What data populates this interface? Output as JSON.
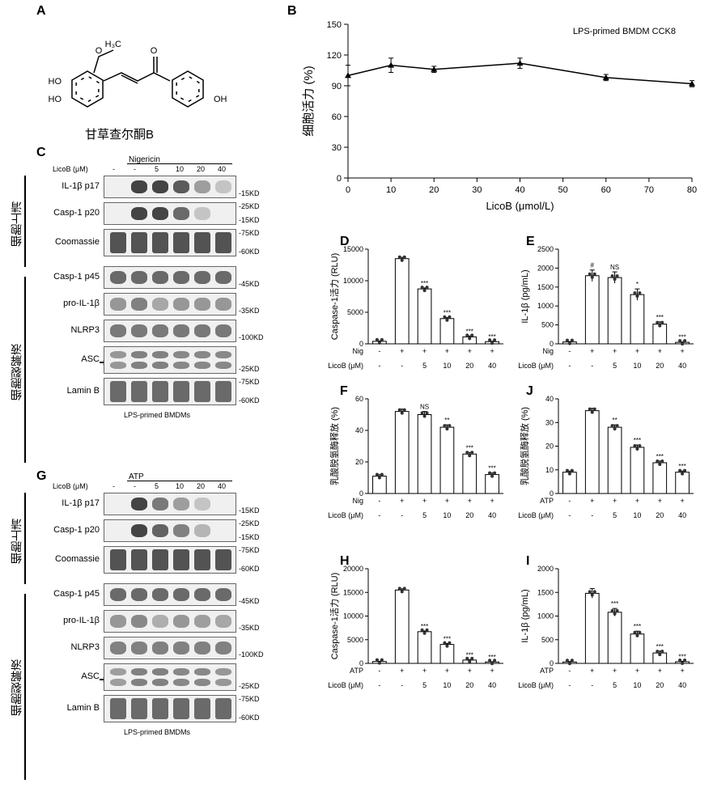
{
  "labels": {
    "A": "A",
    "B": "B",
    "C": "C",
    "D": "D",
    "E": "E",
    "F": "F",
    "G": "G",
    "H": "H",
    "I": "I",
    "J": "J"
  },
  "panelA": {
    "compound_zh": "甘草查尔酮B",
    "atoms": {
      "och3": "H₃C",
      "o": "O",
      "ho_l1": "HO",
      "ho_l2": "HO",
      "oh_r": "OH"
    }
  },
  "panelB": {
    "title": "LPS-primed BMDM CCK8",
    "xlabel": "LicoB (μmol/L)",
    "ylabel": "细胞活力 (%)",
    "x": [
      0,
      10,
      20,
      40,
      60,
      80
    ],
    "y": [
      100,
      110,
      106,
      112,
      98,
      92
    ],
    "err": [
      10,
      7,
      3,
      5,
      3,
      3
    ],
    "xlim": [
      0,
      80
    ],
    "ylim": [
      0,
      150
    ],
    "xticks": [
      0,
      10,
      20,
      30,
      40,
      50,
      60,
      70,
      80
    ],
    "yticks": [
      0,
      30,
      60,
      90,
      120,
      150
    ],
    "line_color": "#000000",
    "marker_color": "#000000",
    "axis_color": "#000000",
    "background": "#ffffff",
    "fontsize": 11
  },
  "wb_common": {
    "conc_header": "LicoB (μM)",
    "conc_values": [
      "-",
      "-",
      "5",
      "10",
      "20",
      "40"
    ],
    "caption": "LPS-primed BMDMs",
    "side_supernatant": "细胞上清",
    "side_lysate": "细胞裂解液"
  },
  "panelC": {
    "stim": "Nigericin",
    "rows": [
      {
        "label": "IL-1β p17",
        "mw": "-15KD",
        "intens": [
          0,
          0.95,
          0.95,
          0.8,
          0.35,
          0.1
        ]
      },
      {
        "label": "Casp-1 p20",
        "mw_top": "-25KD",
        "mw": "-15KD",
        "intens": [
          0,
          0.95,
          0.95,
          0.7,
          0.1,
          0
        ]
      },
      {
        "label": "Coomassie",
        "mw_top": "-75KD",
        "mw": "-60KD",
        "intens": [
          0.85,
          0.85,
          0.85,
          0.85,
          0.85,
          0.85
        ],
        "thick": true
      },
      {
        "label": "Casp-1 p45",
        "mw": "-45KD",
        "intens": [
          0.7,
          0.7,
          0.7,
          0.7,
          0.7,
          0.7
        ]
      },
      {
        "label": "pro-IL-1β",
        "mw": "-35KD",
        "intens": [
          0.4,
          0.55,
          0.3,
          0.4,
          0.4,
          0.4
        ]
      },
      {
        "label": "NLRP3",
        "mw": "-100KD",
        "intens": [
          0.6,
          0.6,
          0.6,
          0.6,
          0.6,
          0.6
        ]
      },
      {
        "label": "ASC",
        "mw": "-25KD",
        "intens": [
          0.4,
          0.55,
          0.55,
          0.5,
          0.5,
          0.5
        ],
        "arrow": true,
        "double": true
      },
      {
        "label": "Lamin B",
        "mw_top": "-75KD",
        "mw": "-60KD",
        "intens": [
          0.7,
          0.7,
          0.7,
          0.7,
          0.7,
          0.7
        ],
        "thick": true
      }
    ]
  },
  "panelG": {
    "stim": "ATP",
    "rows": [
      {
        "label": "IL-1β p17",
        "mw": "-15KD",
        "intens": [
          0,
          0.95,
          0.6,
          0.35,
          0.1,
          0
        ]
      },
      {
        "label": "Casp-1 p20",
        "mw_top": "-25KD",
        "mw": "-15KD",
        "intens": [
          0,
          0.95,
          0.75,
          0.55,
          0.2,
          0
        ]
      },
      {
        "label": "Coomassie",
        "mw_top": "-75KD",
        "mw": "-60KD",
        "intens": [
          0.85,
          0.85,
          0.85,
          0.85,
          0.85,
          0.85
        ],
        "thick": true
      },
      {
        "label": "Casp-1 p45",
        "mw": "-45KD",
        "intens": [
          0.7,
          0.7,
          0.7,
          0.7,
          0.7,
          0.7
        ]
      },
      {
        "label": "pro-IL-1β",
        "mw": "-35KD",
        "intens": [
          0.4,
          0.5,
          0.25,
          0.4,
          0.35,
          0.3
        ]
      },
      {
        "label": "NLRP3",
        "mw": "-100KD",
        "intens": [
          0.55,
          0.55,
          0.55,
          0.55,
          0.55,
          0.55
        ]
      },
      {
        "label": "ASC",
        "mw": "-25KD",
        "intens": [
          0.35,
          0.55,
          0.55,
          0.5,
          0.5,
          0.4
        ],
        "arrow": true,
        "double": true
      },
      {
        "label": "Lamin B",
        "mw_top": "-75KD",
        "mw": "-60KD",
        "intens": [
          0.7,
          0.7,
          0.7,
          0.7,
          0.7,
          0.7
        ],
        "thick": true
      }
    ]
  },
  "bar_common": {
    "conc_label": "LicoB (μM)",
    "conc_values": [
      "-",
      "-",
      "5",
      "10",
      "20",
      "40"
    ],
    "nig_label": "Nig",
    "atp_label": "ATP",
    "pm_values": [
      "-",
      "+",
      "+",
      "+",
      "+",
      "+"
    ],
    "sig": {
      "ns": "NS",
      "s1": "*",
      "s2": "**",
      "s3": "***",
      "hash": "#"
    },
    "axis_color": "#000000",
    "bar_stroke": "#000000",
    "bar_fill": "#ffffff",
    "scatter_fill": "#333333",
    "fontsize_axis": 11,
    "fontsize_tick": 9
  },
  "panelD": {
    "ylabel": "Caspase-1活力 (RLU)",
    "values": [
      400,
      13500,
      8700,
      4000,
      1100,
      350
    ],
    "err": [
      60,
      200,
      150,
      150,
      150,
      60
    ],
    "sigs": [
      null,
      null,
      "***",
      "***",
      "***",
      "***"
    ],
    "ylim": [
      0,
      15000
    ],
    "yticks": [
      0,
      5000,
      10000,
      15000
    ],
    "stim_label": "Nig"
  },
  "panelE": {
    "ylabel": "IL-1β (pg/mL)",
    "values": [
      50,
      1800,
      1750,
      1300,
      520,
      40
    ],
    "err": [
      10,
      150,
      150,
      150,
      60,
      10
    ],
    "sigs": [
      null,
      "#",
      "NS",
      "*",
      "***",
      "***"
    ],
    "ylim": [
      0,
      2500
    ],
    "yticks": [
      0,
      500,
      1000,
      1500,
      2000,
      2500
    ],
    "stim_label": "Nig"
  },
  "panelF": {
    "ylabel": "乳酸脱氢酶释放 (%)",
    "values": [
      11,
      52,
      50,
      42,
      25,
      12
    ],
    "err": [
      1,
      1.5,
      2,
      1.5,
      1,
      1
    ],
    "sigs": [
      null,
      null,
      "NS",
      "**",
      "***",
      "***"
    ],
    "ylim": [
      0,
      60
    ],
    "yticks": [
      0,
      20,
      40,
      60
    ],
    "stim_label": "Nig"
  },
  "panelJ": {
    "ylabel": "乳酸脱氢酶释放 (%)",
    "values": [
      9,
      35,
      28,
      19.5,
      13,
      9
    ],
    "err": [
      0.5,
      1,
      1,
      1,
      0.7,
      0.5
    ],
    "sigs": [
      null,
      null,
      "**",
      "***",
      "***",
      "***"
    ],
    "ylim": [
      0,
      40
    ],
    "yticks": [
      0,
      10,
      20,
      30,
      40
    ],
    "stim_label": "ATP"
  },
  "panelH": {
    "ylabel": "Caspase-1活力 (RLU)",
    "values": [
      400,
      15500,
      6700,
      4000,
      700,
      300
    ],
    "err": [
      60,
      250,
      150,
      200,
      80,
      50
    ],
    "sigs": [
      null,
      null,
      "***",
      "***",
      "***",
      "***"
    ],
    "ylim": [
      0,
      20000
    ],
    "yticks": [
      0,
      5000,
      10000,
      15000,
      20000
    ],
    "stim_label": "ATP"
  },
  "panelI": {
    "ylabel": "IL-1β (pg/mL)",
    "values": [
      30,
      1480,
      1080,
      620,
      220,
      35
    ],
    "err": [
      10,
      100,
      80,
      60,
      40,
      10
    ],
    "sigs": [
      null,
      null,
      "***",
      "***",
      "***",
      "***"
    ],
    "ylim": [
      0,
      2000
    ],
    "yticks": [
      0,
      500,
      1000,
      1500,
      2000
    ],
    "stim_label": "ATP"
  }
}
